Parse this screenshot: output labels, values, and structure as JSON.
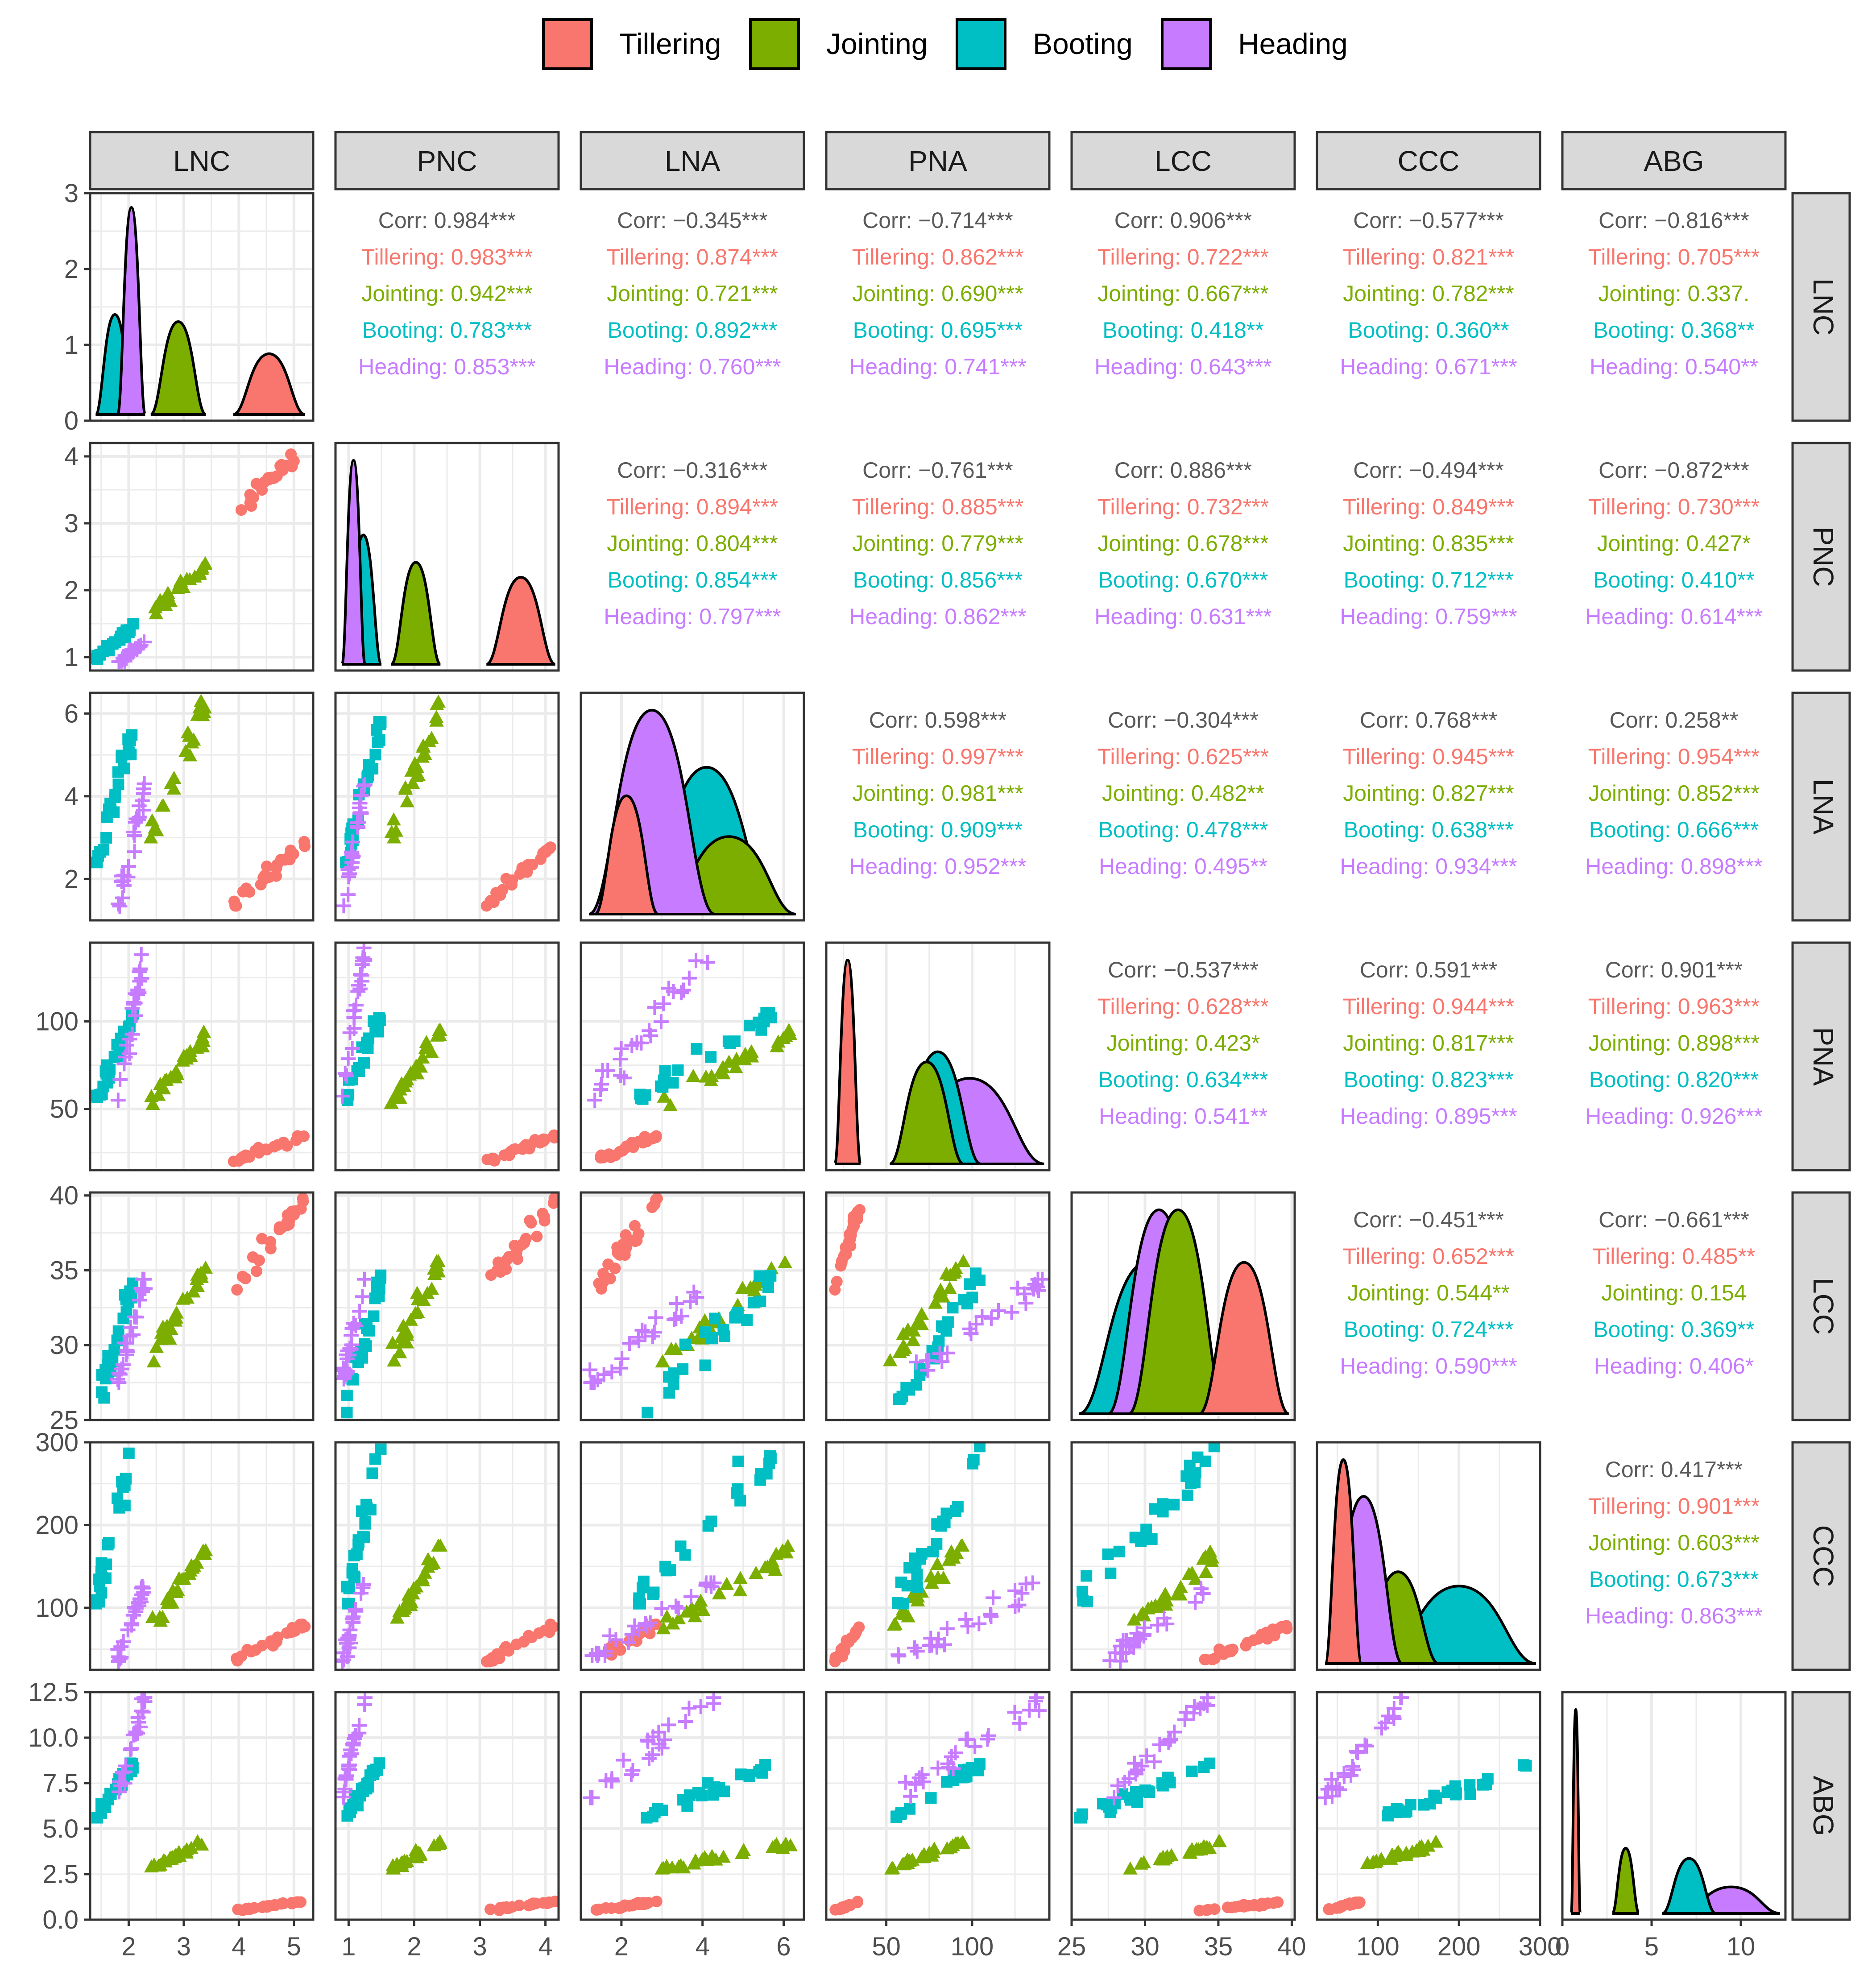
{
  "legend": {
    "position": "top",
    "items": [
      {
        "label": "Tillering",
        "color": "#F8766D",
        "shape": "circle"
      },
      {
        "label": "Jointing",
        "color": "#7CAE00",
        "shape": "triangle"
      },
      {
        "label": "Booting",
        "color": "#00BFC4",
        "shape": "square"
      },
      {
        "label": "Heading",
        "color": "#C77CFF",
        "shape": "plus"
      }
    ]
  },
  "chart_data": {
    "type": "scatter",
    "title": "",
    "variables": [
      "LNC",
      "PNC",
      "LNA",
      "PNA",
      "LCC",
      "CCC",
      "ABG"
    ],
    "groups": [
      "Tillering",
      "Jointing",
      "Booting",
      "Heading"
    ],
    "colors": [
      "#F8766D",
      "#7CAE00",
      "#00BFC4",
      "#C77CFF"
    ],
    "group_ranges": {
      "LNC": [
        [
          3.9,
          5.2
        ],
        [
          2.4,
          3.4
        ],
        [
          1.4,
          2.1
        ],
        [
          1.8,
          2.3
        ]
      ],
      "PNC": [
        [
          3.1,
          4.15
        ],
        [
          1.65,
          2.4
        ],
        [
          0.95,
          1.5
        ],
        [
          0.9,
          1.25
        ]
      ],
      "LNA": [
        [
          1.35,
          2.9
        ],
        [
          3.0,
          6.3
        ],
        [
          2.4,
          5.8
        ],
        [
          1.2,
          4.3
        ]
      ],
      "PNA": [
        [
          20,
          35
        ],
        [
          52,
          95
        ],
        [
          55,
          105
        ],
        [
          55,
          142
        ]
      ],
      "LCC": [
        [
          33.7,
          39.8
        ],
        [
          28.9,
          35.6
        ],
        [
          25.5,
          34.8
        ],
        [
          27.5,
          34.4
        ]
      ],
      "CCC": [
        [
          35,
          80
        ],
        [
          75,
          175
        ],
        [
          105,
          295
        ],
        [
          35,
          130
        ]
      ],
      "ABG": [
        [
          0.5,
          1.0
        ],
        [
          2.8,
          4.3
        ],
        [
          5.6,
          8.6
        ],
        [
          6.7,
          12.2
        ]
      ]
    },
    "density_peaks": {
      "LNC": [
        0.85,
        1.3,
        1.4,
        2.9
      ],
      "PNC": [
        1.75,
        2.05,
        2.6,
        4.1
      ],
      "LNA": [
        0.58,
        0.38,
        0.72,
        1.0
      ],
      "PNA": [
        1.0,
        0.5,
        0.55,
        0.42
      ],
      "LCC": [
        0.72,
        0.97,
        0.72,
        0.97
      ],
      "CCC": [
        1.0,
        0.45,
        0.38,
        0.82
      ],
      "ABG": [
        1.0,
        0.32,
        0.27,
        0.13
      ]
    },
    "axes": {
      "LNC": {
        "lim": [
          1.3,
          5.35
        ],
        "ticks": [
          2,
          3,
          4,
          5
        ],
        "tick_labels": [
          "2",
          "3",
          "4",
          "5"
        ],
        "minor": [
          1.5,
          2.5,
          3.5,
          4.5
        ]
      },
      "PNC": {
        "lim": [
          0.8,
          4.2
        ],
        "ticks": [
          1,
          2,
          3,
          4
        ],
        "tick_labels": [
          "1",
          "2",
          "3",
          "4"
        ],
        "minor": [
          1.5,
          2.5,
          3.5
        ]
      },
      "LNA": {
        "lim": [
          1.0,
          6.5
        ],
        "ticks": [
          2,
          4,
          6
        ],
        "tick_labels": [
          "2",
          "4",
          "6"
        ],
        "minor": [
          1,
          3,
          5
        ]
      },
      "PNA": {
        "lim": [
          15,
          145
        ],
        "ticks": [
          50,
          100
        ],
        "tick_labels": [
          "50",
          "100"
        ],
        "minor": [
          25,
          75,
          125
        ]
      },
      "LCC": {
        "lim": [
          25,
          40.2
        ],
        "ticks": [
          25,
          30,
          35,
          40
        ],
        "tick_labels": [
          "25",
          "30",
          "35",
          "40"
        ],
        "minor": [
          27.5,
          32.5,
          37.5
        ]
      },
      "CCC": {
        "lim": [
          25,
          300
        ],
        "ticks": [
          100,
          200,
          300
        ],
        "tick_labels": [
          "100",
          "200",
          "300"
        ],
        "minor": [
          50,
          150,
          250
        ]
      },
      "ABG": {
        "lim": [
          0,
          12.5
        ],
        "ticks": [
          0,
          5,
          10
        ],
        "tick_labels": [
          "0",
          "5",
          "10"
        ],
        "minor": [
          2.5,
          7.5,
          12.5
        ],
        "y_ticks": [
          0,
          2.5,
          5,
          7.5,
          10,
          12.5
        ],
        "y_tick_labels": [
          "0.0",
          "2.5",
          "5.0",
          "7.5",
          "10.0",
          "12.5"
        ]
      }
    },
    "first_panel_y": {
      "lim": [
        0,
        3.0
      ],
      "ticks": [
        0,
        1,
        2,
        3
      ],
      "tick_labels": [
        "0",
        "1",
        "2",
        "3"
      ],
      "minor": [
        0.5,
        1.5,
        2.5
      ]
    },
    "correlations": [
      {
        "row": "LNC",
        "col": "PNC",
        "lines": [
          "Corr: 0.984***",
          "Tillering: 0.983***",
          "Jointing: 0.942***",
          "Booting: 0.783***",
          "Heading: 0.853***"
        ]
      },
      {
        "row": "LNC",
        "col": "LNA",
        "lines": [
          "Corr: −0.345***",
          "Tillering: 0.874***",
          "Jointing: 0.721***",
          "Booting: 0.892***",
          "Heading: 0.760***"
        ]
      },
      {
        "row": "LNC",
        "col": "PNA",
        "lines": [
          "Corr: −0.714***",
          "Tillering: 0.862***",
          "Jointing: 0.690***",
          "Booting: 0.695***",
          "Heading: 0.741***"
        ]
      },
      {
        "row": "LNC",
        "col": "LCC",
        "lines": [
          "Corr: 0.906***",
          "Tillering: 0.722***",
          "Jointing: 0.667***",
          "Booting: 0.418**",
          "Heading: 0.643***"
        ]
      },
      {
        "row": "LNC",
        "col": "CCC",
        "lines": [
          "Corr: −0.577***",
          "Tillering: 0.821***",
          "Jointing: 0.782***",
          "Booting: 0.360**",
          "Heading: 0.671***"
        ]
      },
      {
        "row": "LNC",
        "col": "ABG",
        "lines": [
          "Corr: −0.816***",
          "Tillering: 0.705***",
          "Jointing: 0.337.",
          "Booting: 0.368**",
          "Heading: 0.540**"
        ]
      },
      {
        "row": "PNC",
        "col": "LNA",
        "lines": [
          "Corr: −0.316***",
          "Tillering: 0.894***",
          "Jointing: 0.804***",
          "Booting: 0.854***",
          "Heading: 0.797***"
        ]
      },
      {
        "row": "PNC",
        "col": "PNA",
        "lines": [
          "Corr: −0.761***",
          "Tillering: 0.885***",
          "Jointing: 0.779***",
          "Booting: 0.856***",
          "Heading: 0.862***"
        ]
      },
      {
        "row": "PNC",
        "col": "LCC",
        "lines": [
          "Corr: 0.886***",
          "Tillering: 0.732***",
          "Jointing: 0.678***",
          "Booting: 0.670***",
          "Heading: 0.631***"
        ]
      },
      {
        "row": "PNC",
        "col": "CCC",
        "lines": [
          "Corr: −0.494***",
          "Tillering: 0.849***",
          "Jointing: 0.835***",
          "Booting: 0.712***",
          "Heading: 0.759***"
        ]
      },
      {
        "row": "PNC",
        "col": "ABG",
        "lines": [
          "Corr: −0.872***",
          "Tillering: 0.730***",
          "Jointing: 0.427*",
          "Booting: 0.410**",
          "Heading: 0.614***"
        ]
      },
      {
        "row": "LNA",
        "col": "PNA",
        "lines": [
          "Corr: 0.598***",
          "Tillering: 0.997***",
          "Jointing: 0.981***",
          "Booting: 0.909***",
          "Heading: 0.952***"
        ]
      },
      {
        "row": "LNA",
        "col": "LCC",
        "lines": [
          "Corr: −0.304***",
          "Tillering: 0.625***",
          "Jointing: 0.482**",
          "Booting: 0.478***",
          "Heading: 0.495**"
        ]
      },
      {
        "row": "LNA",
        "col": "CCC",
        "lines": [
          "Corr: 0.768***",
          "Tillering: 0.945***",
          "Jointing: 0.827***",
          "Booting: 0.638***",
          "Heading: 0.934***"
        ]
      },
      {
        "row": "LNA",
        "col": "ABG",
        "lines": [
          "Corr: 0.258**",
          "Tillering: 0.954***",
          "Jointing: 0.852***",
          "Booting: 0.666***",
          "Heading: 0.898***"
        ]
      },
      {
        "row": "PNA",
        "col": "LCC",
        "lines": [
          "Corr: −0.537***",
          "Tillering: 0.628***",
          "Jointing: 0.423*",
          "Booting: 0.634***",
          "Heading: 0.541**"
        ]
      },
      {
        "row": "PNA",
        "col": "CCC",
        "lines": [
          "Corr: 0.591***",
          "Tillering: 0.944***",
          "Jointing: 0.817***",
          "Booting: 0.823***",
          "Heading: 0.895***"
        ]
      },
      {
        "row": "PNA",
        "col": "ABG",
        "lines": [
          "Corr: 0.901***",
          "Tillering: 0.963***",
          "Jointing: 0.898***",
          "Booting: 0.820***",
          "Heading: 0.926***"
        ]
      },
      {
        "row": "LCC",
        "col": "CCC",
        "lines": [
          "Corr: −0.451***",
          "Tillering: 0.652***",
          "Jointing: 0.544**",
          "Booting: 0.724***",
          "Heading: 0.590***"
        ]
      },
      {
        "row": "LCC",
        "col": "ABG",
        "lines": [
          "Corr: −0.661***",
          "Tillering: 0.485**",
          "Jointing: 0.154",
          "Booting: 0.369**",
          "Heading: 0.406*"
        ]
      },
      {
        "row": "CCC",
        "col": "ABG",
        "lines": [
          "Corr: 0.417***",
          "Tillering: 0.901***",
          "Jointing: 0.603***",
          "Booting: 0.673***",
          "Heading: 0.863***"
        ]
      }
    ]
  }
}
